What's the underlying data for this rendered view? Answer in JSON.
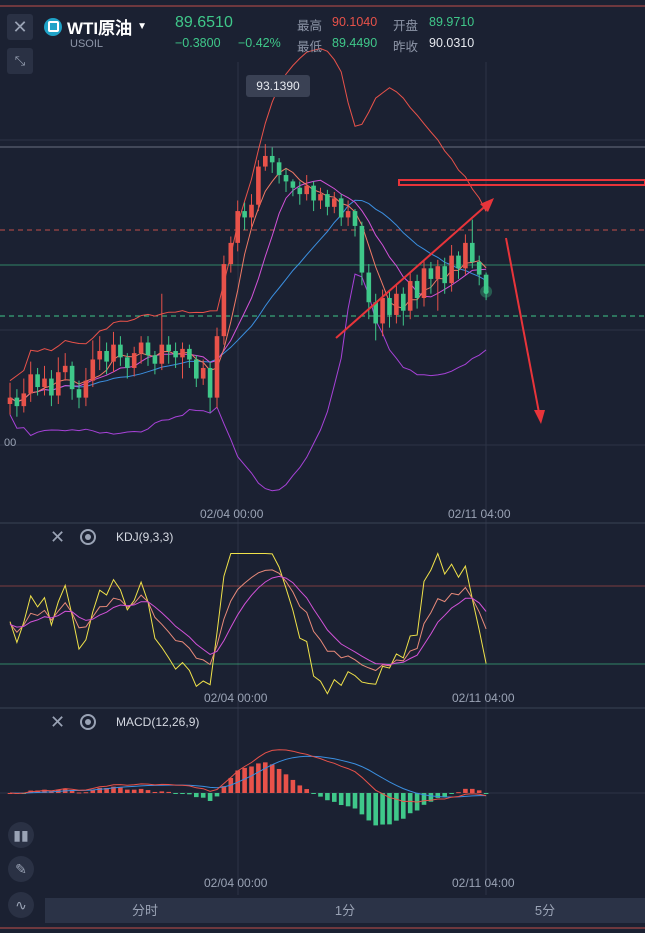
{
  "header": {
    "symbol": "WTI原油",
    "subtitle": "USOIL",
    "price": "89.6510",
    "change": "−0.3800",
    "change_pct": "−0.42%",
    "stats": {
      "high_label": "最高",
      "high_value": "90.1040",
      "open_label": "开盘",
      "open_value": "89.9710",
      "low_label": "最低",
      "low_value": "89.4490",
      "prev_close_label": "昨收",
      "prev_close_value": "90.0310"
    },
    "colors": {
      "up": "#e8524a",
      "down": "#3fc88a",
      "accent": "#1fa3c8"
    }
  },
  "icons": {
    "close": "close-icon",
    "expand": "collapse-arrows-icon",
    "gear": "gear-icon"
  },
  "main_chart": {
    "tooltip": "93.1390",
    "left_axis_partial": "00",
    "x_labels": [
      "02/04 00:00",
      "02/11 04:00"
    ]
  },
  "kdj": {
    "label": "KDJ(9,3,3)",
    "x_labels": [
      "02/04 00:00",
      "02/11 04:00"
    ]
  },
  "macd": {
    "label": "MACD(12,26,9)",
    "x_labels": [
      "02/04 00:00",
      "02/11 04:00"
    ]
  },
  "tools": [
    "candlestick-icon",
    "pencil-icon",
    "indicator-icon"
  ],
  "tabs": [
    "分时",
    "1分",
    "5分"
  ],
  "chart_data": {
    "type": "candlestick",
    "candles": [
      {
        "o": 87.0,
        "c": 87.15,
        "h": 87.5,
        "l": 86.75
      },
      {
        "o": 87.15,
        "c": 86.95,
        "h": 87.35,
        "l": 86.7
      },
      {
        "o": 86.95,
        "c": 87.25,
        "h": 87.6,
        "l": 86.8
      },
      {
        "o": 87.25,
        "c": 87.7,
        "h": 88.0,
        "l": 87.05
      },
      {
        "o": 87.7,
        "c": 87.4,
        "h": 87.85,
        "l": 87.2
      },
      {
        "o": 87.4,
        "c": 87.6,
        "h": 87.9,
        "l": 87.2
      },
      {
        "o": 87.6,
        "c": 87.2,
        "h": 87.8,
        "l": 86.95
      },
      {
        "o": 87.2,
        "c": 87.75,
        "h": 88.1,
        "l": 87.0
      },
      {
        "o": 87.75,
        "c": 87.9,
        "h": 88.2,
        "l": 87.55
      },
      {
        "o": 87.9,
        "c": 87.35,
        "h": 88.0,
        "l": 87.1
      },
      {
        "o": 87.35,
        "c": 87.15,
        "h": 87.55,
        "l": 86.9
      },
      {
        "o": 87.15,
        "c": 87.55,
        "h": 87.85,
        "l": 86.95
      },
      {
        "o": 87.55,
        "c": 88.05,
        "h": 88.5,
        "l": 87.4
      },
      {
        "o": 88.05,
        "c": 88.25,
        "h": 88.6,
        "l": 87.8
      },
      {
        "o": 88.25,
        "c": 88.0,
        "h": 88.45,
        "l": 87.7
      },
      {
        "o": 88.0,
        "c": 88.4,
        "h": 88.7,
        "l": 87.75
      },
      {
        "o": 88.4,
        "c": 88.1,
        "h": 88.6,
        "l": 87.9
      },
      {
        "o": 88.1,
        "c": 87.85,
        "h": 88.2,
        "l": 87.6
      },
      {
        "o": 87.85,
        "c": 88.2,
        "h": 88.35,
        "l": 87.65
      },
      {
        "o": 88.2,
        "c": 88.45,
        "h": 88.6,
        "l": 87.95
      },
      {
        "o": 88.45,
        "c": 88.15,
        "h": 88.6,
        "l": 87.9
      },
      {
        "o": 88.15,
        "c": 87.95,
        "h": 88.25,
        "l": 87.7
      },
      {
        "o": 87.95,
        "c": 88.4,
        "h": 89.6,
        "l": 87.8
      },
      {
        "o": 88.4,
        "c": 88.25,
        "h": 88.6,
        "l": 87.95
      },
      {
        "o": 88.25,
        "c": 88.1,
        "h": 88.45,
        "l": 87.85
      },
      {
        "o": 88.1,
        "c": 88.3,
        "h": 88.45,
        "l": 87.6
      },
      {
        "o": 88.3,
        "c": 88.05,
        "h": 88.4,
        "l": 87.85
      },
      {
        "o": 88.05,
        "c": 87.6,
        "h": 88.15,
        "l": 87.4
      },
      {
        "o": 87.6,
        "c": 87.85,
        "h": 88.05,
        "l": 87.45
      },
      {
        "o": 87.85,
        "c": 87.15,
        "h": 88.0,
        "l": 86.8
      },
      {
        "o": 87.15,
        "c": 88.6,
        "h": 88.8,
        "l": 86.9
      },
      {
        "o": 88.6,
        "c": 90.3,
        "h": 90.5,
        "l": 88.4
      },
      {
        "o": 90.3,
        "c": 90.8,
        "h": 90.95,
        "l": 90.1
      },
      {
        "o": 90.8,
        "c": 91.55,
        "h": 91.8,
        "l": 90.6
      },
      {
        "o": 91.55,
        "c": 91.4,
        "h": 91.75,
        "l": 91.1
      },
      {
        "o": 91.4,
        "c": 91.7,
        "h": 91.95,
        "l": 91.15
      },
      {
        "o": 91.7,
        "c": 92.6,
        "h": 92.75,
        "l": 91.55
      },
      {
        "o": 92.6,
        "c": 92.85,
        "h": 93.13,
        "l": 92.5
      },
      {
        "o": 92.85,
        "c": 92.7,
        "h": 93.05,
        "l": 92.45
      },
      {
        "o": 92.7,
        "c": 92.4,
        "h": 92.8,
        "l": 92.2
      },
      {
        "o": 92.4,
        "c": 92.25,
        "h": 92.55,
        "l": 92.0
      },
      {
        "o": 92.25,
        "c": 92.1,
        "h": 92.3,
        "l": 91.9
      },
      {
        "o": 92.1,
        "c": 91.95,
        "h": 92.25,
        "l": 91.7
      },
      {
        "o": 91.95,
        "c": 92.15,
        "h": 92.4,
        "l": 91.8
      },
      {
        "o": 92.15,
        "c": 91.8,
        "h": 92.25,
        "l": 91.55
      },
      {
        "o": 91.8,
        "c": 91.95,
        "h": 92.1,
        "l": 91.6
      },
      {
        "o": 91.95,
        "c": 91.65,
        "h": 92.05,
        "l": 91.45
      },
      {
        "o": 91.65,
        "c": 91.85,
        "h": 92.0,
        "l": 91.5
      },
      {
        "o": 91.85,
        "c": 91.4,
        "h": 91.95,
        "l": 91.2
      },
      {
        "o": 91.4,
        "c": 91.55,
        "h": 91.8,
        "l": 91.2
      },
      {
        "o": 91.55,
        "c": 91.2,
        "h": 91.6,
        "l": 90.95
      },
      {
        "o": 91.2,
        "c": 90.1,
        "h": 91.3,
        "l": 89.8
      },
      {
        "o": 90.1,
        "c": 89.4,
        "h": 90.3,
        "l": 89.0
      },
      {
        "o": 89.4,
        "c": 88.9,
        "h": 89.6,
        "l": 88.5
      },
      {
        "o": 88.9,
        "c": 89.5,
        "h": 89.7,
        "l": 88.6
      },
      {
        "o": 89.5,
        "c": 89.1,
        "h": 89.65,
        "l": 88.8
      },
      {
        "o": 89.1,
        "c": 89.6,
        "h": 89.8,
        "l": 88.9
      },
      {
        "o": 89.6,
        "c": 89.2,
        "h": 89.75,
        "l": 88.85
      },
      {
        "o": 89.2,
        "c": 89.9,
        "h": 90.1,
        "l": 89.0
      },
      {
        "o": 89.9,
        "c": 89.5,
        "h": 90.05,
        "l": 89.25
      },
      {
        "o": 89.5,
        "c": 90.2,
        "h": 90.4,
        "l": 89.3
      },
      {
        "o": 90.2,
        "c": 89.95,
        "h": 90.35,
        "l": 89.6
      },
      {
        "o": 89.95,
        "c": 90.25,
        "h": 90.4,
        "l": 89.2
      },
      {
        "o": 90.25,
        "c": 89.85,
        "h": 90.45,
        "l": 89.6
      },
      {
        "o": 89.85,
        "c": 90.5,
        "h": 90.75,
        "l": 89.65
      },
      {
        "o": 90.5,
        "c": 90.2,
        "h": 90.6,
        "l": 89.95
      },
      {
        "o": 90.2,
        "c": 90.8,
        "h": 91.0,
        "l": 90.05
      },
      {
        "o": 90.8,
        "c": 90.35,
        "h": 91.35,
        "l": 90.2
      },
      {
        "o": 90.35,
        "c": 90.05,
        "h": 90.5,
        "l": 89.8
      },
      {
        "o": 90.05,
        "c": 89.65,
        "h": 90.1,
        "l": 89.45
      }
    ],
    "overlays": {
      "upper_band": "#e8524a",
      "lower_band": "#a742d8",
      "ma_fast": "#f07a66",
      "ma_mid": "#d252d8",
      "ma_slow": "#3b8fe0"
    },
    "kdj_series": {
      "k_color": "#e88a7a",
      "d_color": "#d252d8",
      "j_color": "#f0e24a"
    },
    "macd_series": {
      "dif_color": "#e8524a",
      "dea_color": "#3b8fe0"
    }
  }
}
